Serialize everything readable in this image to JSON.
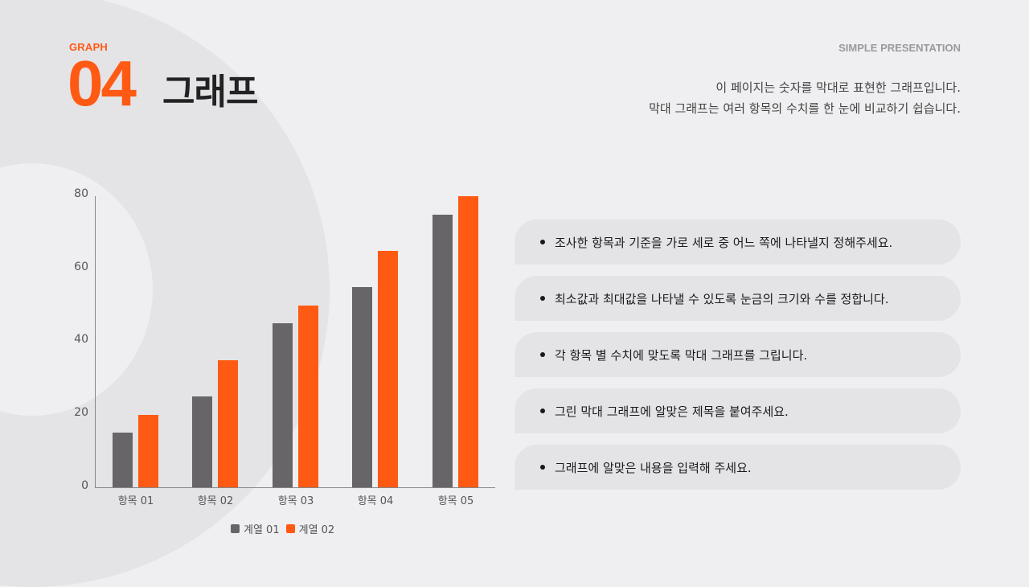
{
  "header": {
    "tag": "GRAPH",
    "number": "04",
    "title": "그래프",
    "brand": "SIMPLE PRESENTATION",
    "description": [
      "이 페이지는 숫자를 막대로 표현한 그래프입니다.",
      "막대 그래프는 여러 항목의 수치를 한 눈에 비교하기 쉽습니다."
    ]
  },
  "chart_data": {
    "type": "bar",
    "title": "",
    "xlabel": "",
    "ylabel": "",
    "categories": [
      "항목 01",
      "항목 02",
      "항목 03",
      "항목 04",
      "항목 05"
    ],
    "series": [
      {
        "name": "계열 01",
        "color": "#676568",
        "values": [
          15,
          25,
          45,
          55,
          75
        ]
      },
      {
        "name": "계열 02",
        "color": "#ff5a14",
        "values": [
          20,
          35,
          50,
          65,
          80
        ]
      }
    ],
    "yticks": [
      "0",
      "20",
      "40",
      "60",
      "80"
    ],
    "ylim": [
      0,
      80
    ],
    "grid": false,
    "legend_position": "bottom"
  },
  "steps": [
    "조사한 항목과 기준을 가로 세로 중 어느 쪽에 나타낼지 정해주세요.",
    "최소값과 최대값을 나타낼 수 있도록 눈금의 크기와 수를 정합니다.",
    "각 항목 별 수치에 맞도록 막대 그래프를 그립니다.",
    "그린 막대 그래프에 알맞은 제목을 붙여주세요.",
    "그래프에 알맞은 내용을 입력해 주세요."
  ],
  "colors": {
    "accent": "#ff5a14",
    "series1": "#676568",
    "background": "#efeef0",
    "pill": "#e4e3e6"
  }
}
